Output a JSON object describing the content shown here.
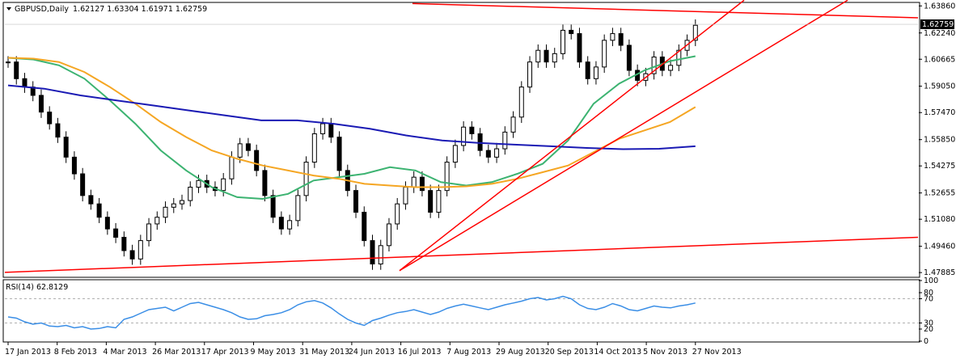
{
  "header": {
    "symbol": "GBPUSD,Daily",
    "ohlc": "1.62127 1.63304 1.61971 1.62759",
    "menu_icon": "triangle-down-icon"
  },
  "chart_data": [
    {
      "type": "candlestick",
      "title": "GBPUSD,Daily",
      "price_axis_ticks": [
        "1.63860",
        "1.62240",
        "1.60665",
        "1.59050",
        "1.57470",
        "1.55850",
        "1.54275",
        "1.52655",
        "1.51080",
        "1.49460",
        "1.47885"
      ],
      "ylim": [
        1.4765,
        1.6402
      ],
      "current_price_label": "1.62759",
      "current_price": 1.62759,
      "time_axis_labels": [
        "17 Jan 2013",
        "8 Feb 2013",
        "4 Mar 2013",
        "26 Mar 2013",
        "17 Apr 2013",
        "9 May 2013",
        "31 May 2013",
        "24 Jun 2013",
        "16 Jul 2013",
        "7 Aug 2013",
        "29 Aug 2013",
        "20 Sep 2013",
        "14 Oct 2013",
        "5 Nov 2013",
        "27 Nov 2013"
      ],
      "price_path": [
        1.605,
        1.595,
        1.59,
        1.585,
        1.575,
        1.568,
        1.56,
        1.548,
        1.538,
        1.525,
        1.52,
        1.512,
        1.505,
        1.5,
        1.492,
        1.487,
        1.498,
        1.508,
        1.512,
        1.518,
        1.52,
        1.522,
        1.53,
        1.534,
        1.53,
        1.528,
        1.535,
        1.548,
        1.556,
        1.552,
        1.54,
        1.525,
        1.512,
        1.505,
        1.51,
        1.525,
        1.545,
        1.562,
        1.568,
        1.56,
        1.54,
        1.528,
        1.515,
        1.498,
        1.484,
        1.495,
        1.508,
        1.52,
        1.53,
        1.536,
        1.528,
        1.515,
        1.528,
        1.545,
        1.555,
        1.566,
        1.562,
        1.552,
        1.548,
        1.553,
        1.563,
        1.572,
        1.59,
        1.605,
        1.612,
        1.605,
        1.61,
        1.624,
        1.622,
        1.605,
        1.595,
        1.602,
        1.618,
        1.622,
        1.615,
        1.6,
        1.594,
        1.598,
        1.608,
        1.6,
        1.603,
        1.612,
        1.618,
        1.627
      ],
      "series": [
        {
          "name": "",
          "color": "#3cb371",
          "values": [
            1.6075,
            1.6065,
            1.603,
            1.595,
            1.582,
            1.568,
            1.552,
            1.54,
            1.53,
            1.524,
            1.523,
            1.526,
            1.534,
            1.536,
            1.538,
            1.542,
            1.54,
            1.533,
            1.531,
            1.533,
            1.538,
            1.544,
            1.558,
            1.58,
            1.592,
            1.6,
            1.6055,
            1.6085
          ]
        },
        {
          "name": "",
          "color": "#f5a623",
          "values": [
            1.6075,
            1.607,
            1.605,
            1.599,
            1.59,
            1.58,
            1.569,
            1.56,
            1.552,
            1.547,
            1.543,
            1.54,
            1.537,
            1.535,
            1.532,
            1.531,
            1.53,
            1.53,
            1.5305,
            1.532,
            1.535,
            1.539,
            1.543,
            1.551,
            1.559,
            1.564,
            1.569,
            1.578
          ]
        },
        {
          "name": "",
          "color": "#1a1ab4",
          "values": [
            1.591,
            1.589,
            1.585,
            1.582,
            1.579,
            1.576,
            1.573,
            1.57,
            1.57,
            1.568,
            1.565,
            1.561,
            1.558,
            1.5565,
            1.5555,
            1.5545,
            1.5535,
            1.5528,
            1.553,
            1.5545
          ]
        }
      ],
      "trendlines": [
        {
          "from": [
            "17 Jan 2013",
            1.479
          ],
          "to": [
            "27 Nov 2013",
            1.499
          ]
        },
        {
          "from": [
            "24 Jun 2013",
            1.48
          ],
          "to": [
            "27 Nov 2013",
            1.64
          ]
        },
        {
          "from": [
            "24 Jun 2013",
            1.48
          ],
          "to": [
            "27 Nov 2013",
            1.64
          ]
        }
      ],
      "trendline_color": "#ff0000",
      "grid": false
    },
    {
      "type": "line",
      "title": "RSI(14) 62.8129",
      "yticks": [
        "100",
        "80",
        "70",
        "30",
        "20",
        "0"
      ],
      "ylim": [
        0,
        100
      ],
      "levels": [
        70,
        30
      ],
      "series": [
        {
          "name": "",
          "color": "#3a8ee6",
          "values": [
            40,
            38,
            32,
            28,
            30,
            25,
            24,
            26,
            22,
            24,
            20,
            21,
            24,
            22,
            36,
            40,
            46,
            52,
            54,
            56,
            50,
            56,
            62,
            64,
            60,
            56,
            52,
            47,
            40,
            36,
            37,
            42,
            44,
            47,
            52,
            60,
            65,
            67,
            63,
            55,
            45,
            36,
            30,
            26,
            34,
            38,
            43,
            47,
            49,
            52,
            48,
            44,
            48,
            54,
            58,
            61,
            58,
            55,
            52,
            56,
            60,
            63,
            66,
            70,
            72,
            68,
            70,
            74,
            70,
            60,
            54,
            52,
            56,
            62,
            58,
            52,
            50,
            54,
            58,
            56,
            55,
            58,
            60,
            63
          ]
        }
      ]
    }
  ]
}
